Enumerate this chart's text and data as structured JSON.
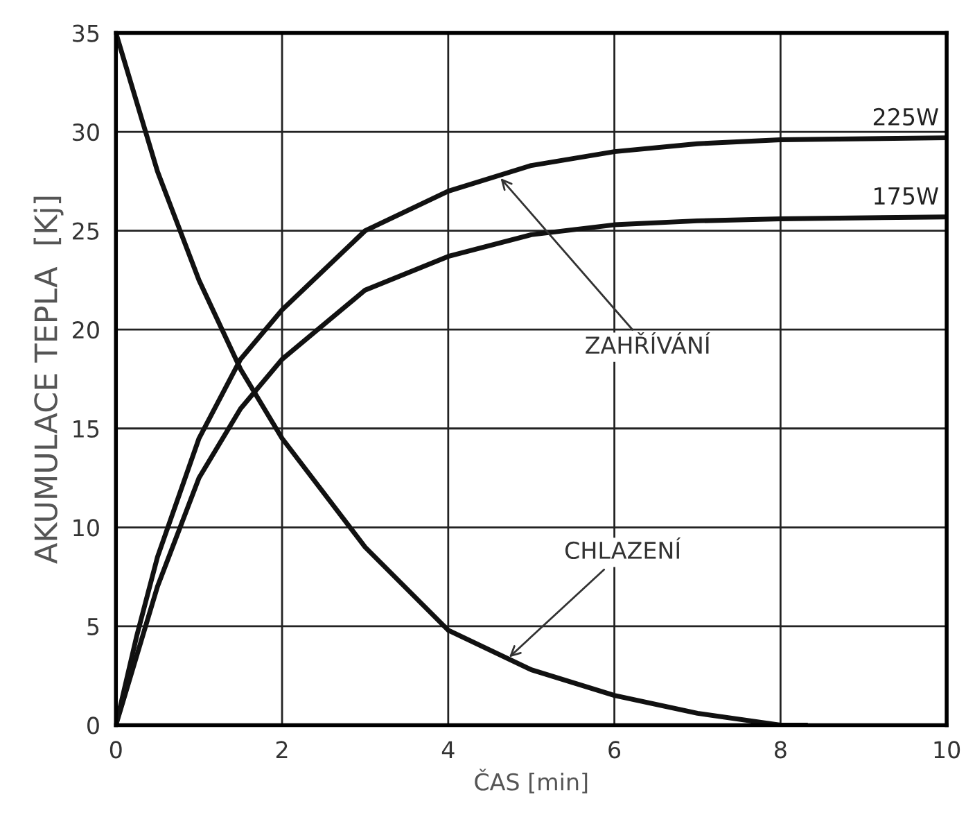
{
  "chart_data": {
    "type": "line",
    "xlabel": "ČAS [min]",
    "ylabel": "AKUMULACE TEPLA  [Kj]",
    "xlim": [
      0,
      10
    ],
    "ylim": [
      0,
      35
    ],
    "xticks": [
      0,
      2,
      4,
      6,
      8,
      10
    ],
    "yticks": [
      0,
      5,
      10,
      15,
      20,
      25,
      30,
      35
    ],
    "grid": true,
    "legend": false,
    "marker": "none",
    "line_style": "solid",
    "series": [
      {
        "name": "225W",
        "color": "#111111",
        "x": [
          0,
          0.25,
          0.5,
          1,
          1.5,
          2,
          3,
          4,
          5,
          6,
          7,
          8,
          10
        ],
        "values": [
          0,
          4.5,
          8.5,
          14.5,
          18.5,
          21,
          25,
          27,
          28.3,
          29,
          29.4,
          29.6,
          29.7
        ]
      },
      {
        "name": "175W",
        "color": "#111111",
        "x": [
          0,
          0.5,
          1,
          1.5,
          2,
          3,
          4,
          5,
          6,
          7,
          8,
          10
        ],
        "values": [
          0,
          7,
          12.5,
          16,
          18.5,
          22,
          23.7,
          24.8,
          25.3,
          25.5,
          25.6,
          25.7
        ]
      },
      {
        "color": "#111111",
        "x": [
          0,
          0.5,
          1,
          1.5,
          2,
          3,
          4,
          5,
          6,
          7,
          8,
          8.3
        ],
        "values": [
          35,
          28,
          22.5,
          18,
          14.5,
          9,
          4.8,
          2.8,
          1.5,
          0.6,
          0,
          0
        ]
      }
    ],
    "annotations": [
      {
        "text": "ZAHŘÍVÁNÍ",
        "x": 4.6,
        "y": 27.8
      },
      {
        "text": "CHLAZENÍ",
        "x": 4.7,
        "y": 3.3
      }
    ]
  }
}
